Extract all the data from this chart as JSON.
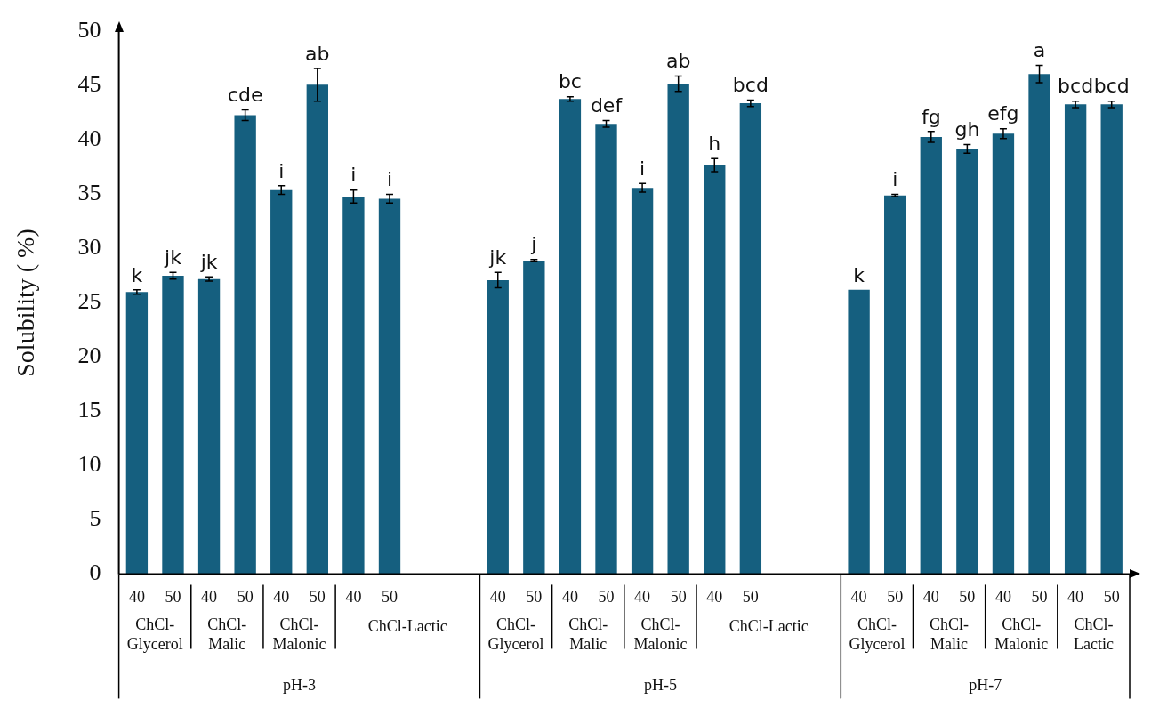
{
  "chart_data": {
    "type": "bar",
    "ylabel": "Solubility ( %)",
    "color": "#155f7f",
    "grid": false,
    "categories": [
      "40",
      "50",
      "40",
      "50",
      "40",
      "50",
      "40",
      "50",
      null,
      null,
      "40",
      "50",
      "40",
      "50",
      "40",
      "50",
      "40",
      "50",
      null,
      null,
      "40",
      "50",
      "40",
      "50",
      "40",
      "50",
      "40",
      "50"
    ],
    "values": [
      26.0,
      27.5,
      27.2,
      42.3,
      35.4,
      45.1,
      34.8,
      34.6,
      null,
      null,
      27.1,
      28.9,
      43.8,
      41.5,
      35.6,
      45.2,
      37.7,
      43.4,
      null,
      null,
      26.2,
      34.9,
      40.3,
      39.2,
      40.6,
      46.1,
      43.3,
      43.3
    ],
    "errors": [
      0.2,
      0.3,
      0.2,
      0.5,
      0.4,
      1.5,
      0.6,
      0.4,
      null,
      null,
      0.7,
      0.1,
      0.2,
      0.3,
      0.4,
      0.7,
      0.6,
      0.3,
      null,
      null,
      null,
      0.1,
      0.5,
      0.4,
      0.45,
      0.8,
      0.3,
      0.3
    ],
    "value_labels": [
      "k",
      "jk",
      "jk",
      "cde",
      "i",
      "ab",
      "i",
      "i",
      null,
      null,
      "jk",
      "j",
      "bc",
      "def",
      "i",
      "ab",
      "h",
      "bcd",
      null,
      null,
      "k",
      "i",
      "fg",
      "gh",
      "efg",
      "a",
      "bcd",
      "bcd"
    ],
    "ylim": [
      0,
      50
    ],
    "yticks": [
      0,
      5,
      10,
      15,
      20,
      25,
      30,
      35,
      40,
      45,
      50
    ],
    "annotations": [
      "ChCl-Glycerol",
      "ChCl-Malic",
      "ChCl-Malonic",
      "ChCl-Lactic",
      "ChCl-Glycerol",
      "ChCl-Malic",
      "ChCl-Malonic",
      "ChCl-Lactic",
      "ChCl-Glycerol",
      "ChCl-Malic",
      "ChCl-Malonic",
      "ChCl-Lactic",
      "pH-3",
      "pH-5",
      "pH-7"
    ]
  }
}
